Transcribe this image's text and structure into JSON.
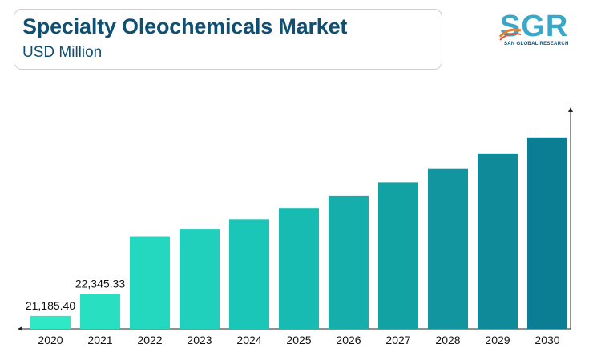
{
  "header": {
    "title": "Specialty Oleochemicals Market",
    "subtitle": "USD Million"
  },
  "logo": {
    "letters": "SGR",
    "tagline": "SAN GLOBAL RESEARCH",
    "color": "#3aa7c9"
  },
  "chart_data": {
    "type": "bar",
    "categories": [
      "2020",
      "2021",
      "2022",
      "2023",
      "2024",
      "2025",
      "2026",
      "2027",
      "2028",
      "2029",
      "2030"
    ],
    "values": [
      21185.4,
      22345.33,
      25400,
      25800,
      26300,
      26900,
      27550,
      28250,
      29000,
      29800,
      30650
    ],
    "data_labels": [
      "21,185.40",
      "22,345.33",
      "",
      "",
      "",
      "",
      "",
      "",
      "",
      "",
      ""
    ],
    "title": "",
    "xlabel": "",
    "ylabel": "",
    "ylim": [
      20500,
      32000
    ],
    "grid": false,
    "colors": [
      "#2ee8c6",
      "#28dfc2",
      "#23d8bf",
      "#20d0bc",
      "#1ac6b7",
      "#18bbb1",
      "#15aeab",
      "#13a2a4",
      "#11969f",
      "#0e8a99",
      "#0b7e93"
    ]
  }
}
